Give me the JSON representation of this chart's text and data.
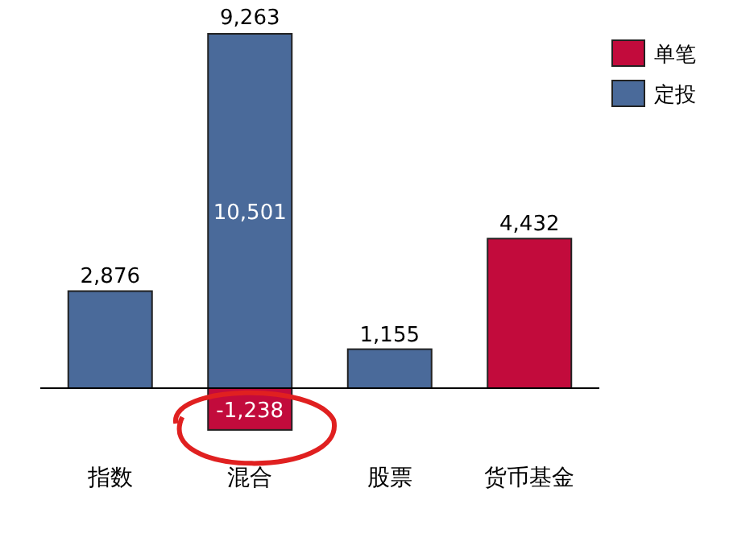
{
  "chart_data": {
    "type": "bar",
    "stacked": true,
    "categories": [
      "指数",
      "混合",
      "股票",
      "货币基金"
    ],
    "series": [
      {
        "name": "单笔",
        "color": "#c20b3c",
        "values": [
          null,
          -1238,
          null,
          4432
        ],
        "value_labels": [
          null,
          "-1,238",
          null,
          "4,432"
        ]
      },
      {
        "name": "定投",
        "color": "#4a6a9a",
        "values": [
          2876,
          10501,
          1155,
          null
        ],
        "value_labels": [
          "2,876",
          "10,501",
          "1,155",
          null
        ]
      }
    ],
    "totals": [
      null,
      "9,263",
      null,
      null
    ],
    "legend": "top right"
  }
}
